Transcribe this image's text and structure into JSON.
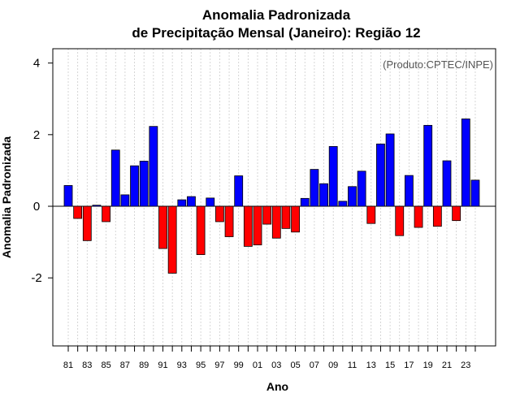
{
  "chart_data": {
    "type": "bar",
    "title": "Anomalia Padronizada",
    "subtitle": "de Precipitação Mensal (Janeiro): Região 12",
    "xlabel": "Ano",
    "ylabel": "Anomalia Padronizada",
    "annotation": "(Produto:CPTEC/INPE)",
    "ylim": [
      -3.9,
      4.4
    ],
    "yticks": [
      -2,
      0,
      2,
      4
    ],
    "ytick_labels": [
      "-2",
      "0",
      "2",
      "4"
    ],
    "xtick_labels": [
      "81",
      "83",
      "85",
      "87",
      "89",
      "91",
      "93",
      "95",
      "97",
      "99",
      "01",
      "03",
      "05",
      "07",
      "09",
      "11",
      "13",
      "15",
      "17",
      "19",
      "21",
      "23"
    ],
    "positive_color": "#0000ff",
    "negative_color": "#ff0000",
    "categories": [
      "1981",
      "1982",
      "1983",
      "1984",
      "1985",
      "1986",
      "1987",
      "1988",
      "1989",
      "1990",
      "1991",
      "1992",
      "1993",
      "1994",
      "1995",
      "1996",
      "1997",
      "1998",
      "1999",
      "2000",
      "2001",
      "2002",
      "2003",
      "2004",
      "2005",
      "2006",
      "2007",
      "2008",
      "2009",
      "2010",
      "2011",
      "2012",
      "2013",
      "2014",
      "2015",
      "2016",
      "2017",
      "2018",
      "2019",
      "2020",
      "2021",
      "2022",
      "2023",
      "2024"
    ],
    "values": [
      0.58,
      -0.34,
      -0.96,
      0.03,
      -0.43,
      1.57,
      0.32,
      1.13,
      1.26,
      2.23,
      -1.18,
      -1.87,
      0.18,
      0.27,
      -1.35,
      0.23,
      -0.43,
      -0.85,
      0.85,
      -1.12,
      -1.08,
      -0.5,
      -0.89,
      -0.62,
      -0.72,
      0.22,
      1.03,
      0.63,
      1.67,
      0.14,
      0.55,
      0.98,
      -0.48,
      1.74,
      2.02,
      -0.82,
      0.86,
      -0.59,
      2.26,
      -0.56,
      1.27,
      -0.4,
      2.44,
      0.73
    ]
  }
}
